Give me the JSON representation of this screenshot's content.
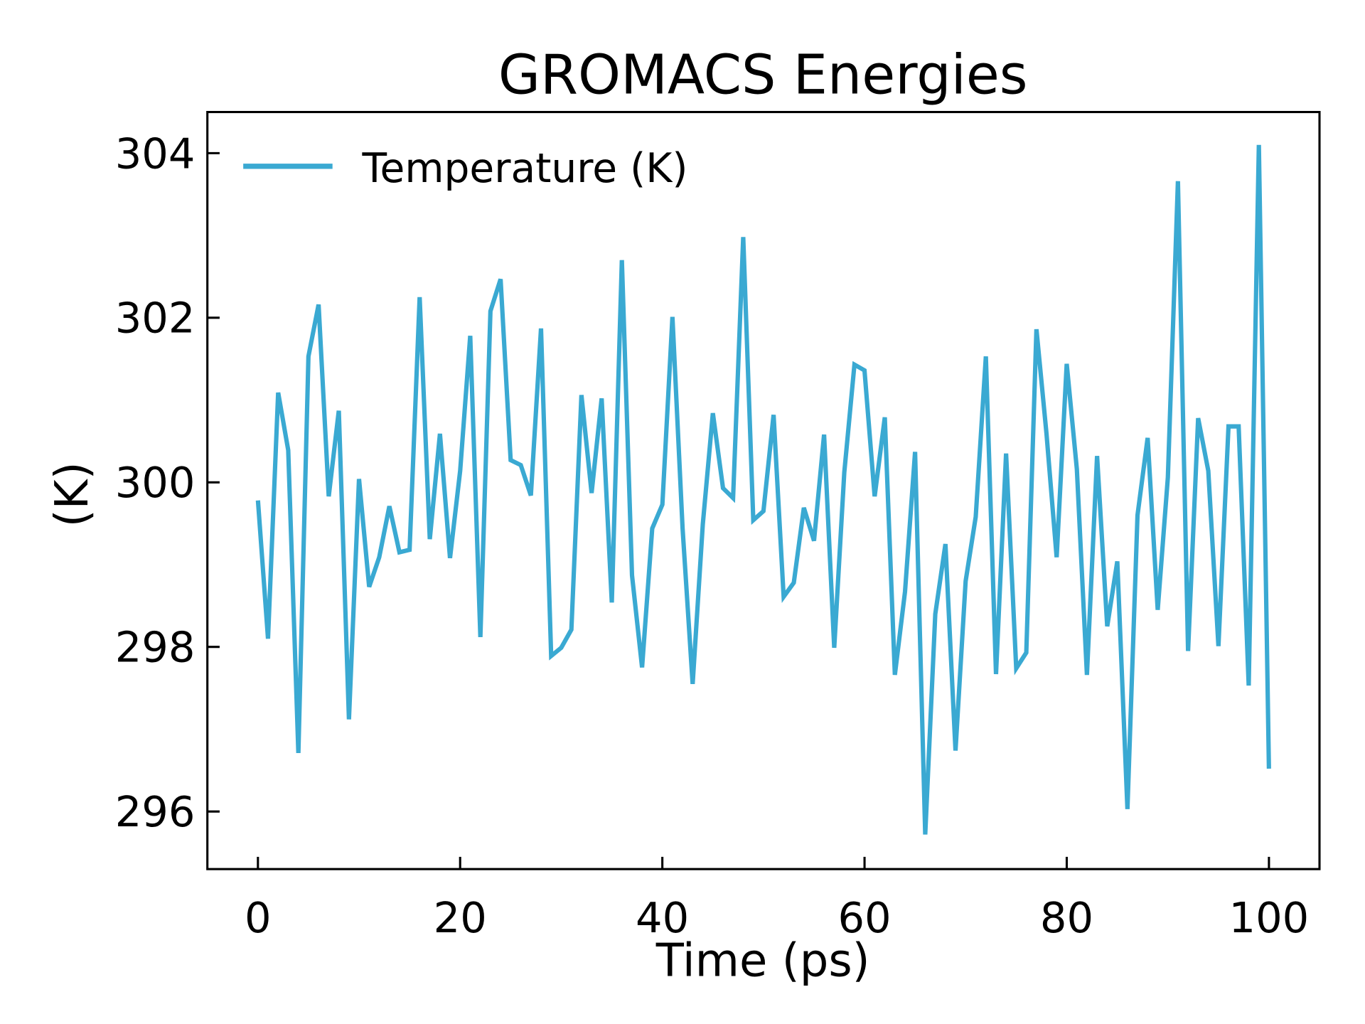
{
  "chart_data": {
    "type": "line",
    "title": "GROMACS Energies",
    "xlabel": "Time (ps)",
    "ylabel": "(K)",
    "xlim": [
      -5,
      105
    ],
    "ylim": [
      295.3,
      304.5
    ],
    "xticks": [
      "0",
      "20",
      "40",
      "60",
      "80",
      "100"
    ],
    "yticks": [
      "296",
      "298",
      "300",
      "302",
      "304"
    ],
    "grid": false,
    "legend_position": "top-left",
    "series": [
      {
        "name": "Temperature (K)",
        "color": "#3aa9d2",
        "x": [
          0,
          1,
          2,
          3,
          4,
          5,
          6,
          7,
          8,
          9,
          10,
          11,
          12,
          13,
          14,
          15,
          16,
          17,
          18,
          19,
          20,
          21,
          22,
          23,
          24,
          25,
          26,
          27,
          28,
          29,
          30,
          31,
          32,
          33,
          34,
          35,
          36,
          37,
          38,
          39,
          40,
          41,
          42,
          43,
          44,
          45,
          46,
          47,
          48,
          49,
          50,
          51,
          52,
          53,
          54,
          55,
          56,
          57,
          58,
          59,
          60,
          61,
          62,
          63,
          64,
          65,
          66,
          67,
          68,
          69,
          70,
          71,
          72,
          73,
          74,
          75,
          76,
          77,
          78,
          79,
          80,
          81,
          82,
          83,
          84,
          85,
          86,
          87,
          88,
          89,
          90,
          91,
          92,
          93,
          94,
          95,
          96,
          97,
          98,
          99,
          100
        ],
        "values": [
          299.78,
          298.1,
          301.09,
          300.39,
          296.71,
          301.53,
          302.16,
          299.83,
          300.87,
          297.12,
          300.04,
          298.73,
          299.09,
          299.71,
          299.15,
          299.18,
          302.25,
          299.31,
          300.59,
          299.08,
          300.14,
          301.78,
          298.12,
          302.08,
          302.47,
          300.27,
          300.21,
          299.84,
          301.87,
          297.89,
          297.99,
          298.21,
          301.06,
          299.87,
          301.02,
          298.54,
          302.7,
          298.87,
          297.75,
          299.44,
          299.73,
          302.01,
          299.44,
          297.55,
          299.49,
          300.84,
          299.93,
          299.81,
          302.98,
          299.54,
          299.65,
          300.82,
          298.61,
          298.78,
          299.69,
          299.29,
          300.58,
          297.99,
          300.12,
          301.43,
          301.36,
          299.83,
          300.79,
          297.66,
          298.67,
          300.37,
          295.72,
          298.4,
          299.25,
          296.74,
          298.8,
          299.58,
          301.53,
          297.67,
          300.35,
          297.74,
          297.93,
          301.86,
          300.59,
          299.09,
          301.44,
          300.16,
          297.66,
          300.32,
          298.25,
          299.04,
          296.03,
          299.6,
          300.54,
          298.45,
          300.06,
          303.66,
          297.95,
          300.78,
          300.14,
          298.01,
          300.68,
          300.68,
          297.53,
          304.1,
          296.52
        ]
      }
    ]
  }
}
